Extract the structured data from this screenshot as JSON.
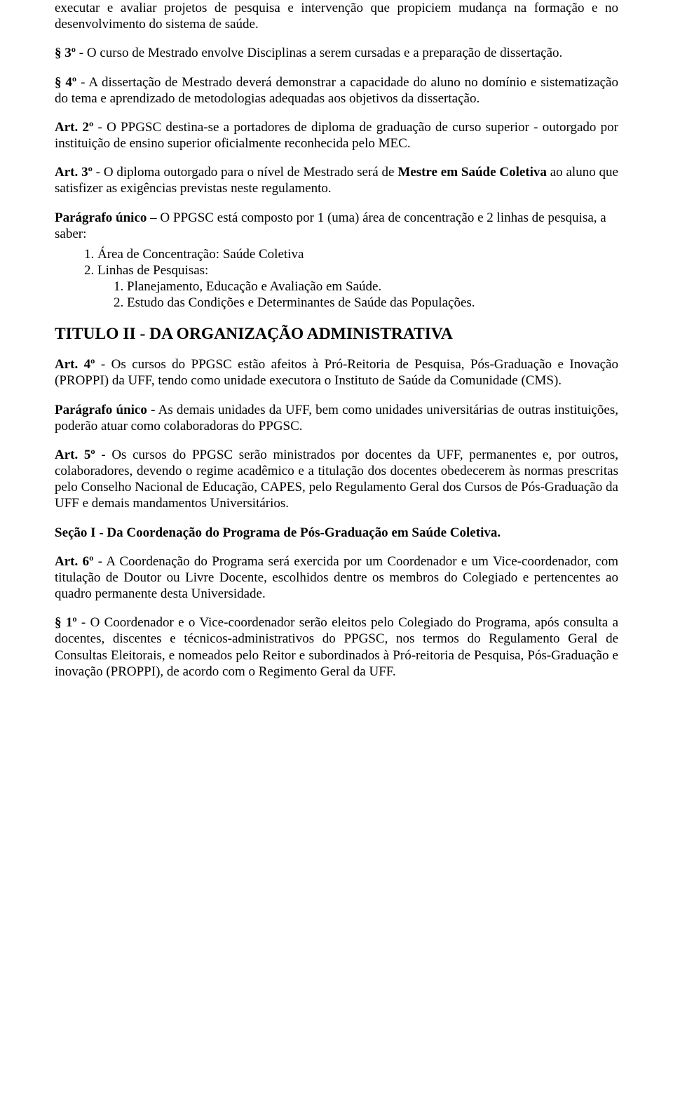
{
  "para1": "executar e avaliar projetos de pesquisa e intervenção que propiciem mudança na formação e no desenvolvimento do sistema de saúde.",
  "para2_prefix": "§ 3º",
  "para2_rest": " - O curso de Mestrado envolve Disciplinas a serem cursadas e a preparação de dissertação.",
  "para3_prefix": "§ 4º",
  "para3_rest": " - A dissertação de Mestrado deverá demonstrar a capacidade do aluno no domínio e sistematização do tema e aprendizado de metodologias adequadas aos objetivos da dissertação.",
  "para4_prefix": "Art. 2º",
  "para4_rest": " - O PPGSC destina-se a portadores de diploma de graduação de curso superior - outorgado por instituição de ensino superior oficialmente reconhecida pelo MEC.",
  "para5_prefix": "Art. 3º",
  "para5_mid1": " - O diploma outorgado para o nível de Mestrado será de ",
  "para5_bold": "Mestre em Saúde Coletiva",
  "para5_mid2": " ao aluno que satisfizer as exigências previstas neste regulamento.",
  "para6_prefix": "Parágrafo único",
  "para6_rest": " – O PPGSC está composto por 1 (uma) área de concentração e 2 linhas de pesquisa, a saber:",
  "list1_item1": "1.  Área de Concentração: Saúde Coletiva",
  "list1_item2": "2.  Linhas de Pesquisas:",
  "list2_item1": "1.  Planejamento, Educação e Avaliação em Saúde.",
  "list2_item2": "2.  Estudo das Condições e Determinantes de Saúde das Populações.",
  "title2": "TITULO II - DA ORGANIZAÇÃO ADMINISTRATIVA",
  "para7_prefix": "Art. 4º",
  "para7_rest": " - Os cursos do PPGSC estão afeitos à Pró-Reitoria de Pesquisa, Pós-Graduação e Inovação (PROPPI) da UFF, tendo como unidade executora o Instituto de Saúde da Comunidade (CMS).",
  "para8_prefix": "Parágrafo único",
  "para8_rest": " - As demais unidades da UFF, bem como unidades universitárias de outras instituições, poderão atuar como colaboradoras do PPGSC.",
  "para9_prefix": "Art. 5º",
  "para9_rest": " - Os cursos do PPGSC serão ministrados por docentes da UFF, permanentes e, por outros, colaboradores, devendo o regime acadêmico e a titulação dos docentes obedecerem às normas prescritas pelo Conselho Nacional de Educação, CAPES, pelo Regulamento Geral dos Cursos de Pós-Graduação da UFF e demais mandamentos Universitários.",
  "section1": "Seção I - Da Coordenação do Programa de Pós-Graduação em Saúde Coletiva.",
  "para10_prefix": "Art. 6º",
  "para10_rest": " - A Coordenação do Programa será exercida por um Coordenador e um Vice-coordenador, com titulação de Doutor ou Livre Docente, escolhidos dentre os membros do Colegiado e pertencentes ao quadro permanente desta Universidade.",
  "para11_prefix": "§ 1º",
  "para11_rest": " - O Coordenador e o Vice-coordenador serão eleitos pelo Colegiado do Programa, após consulta a docentes, discentes e técnicos-administrativos do PPGSC, nos termos do Regulamento Geral de Consultas Eleitorais, e nomeados pelo Reitor e subordinados à Pró-reitoria de Pesquisa, Pós-Graduação e inovação (PROPPI), de acordo com o Regimento Geral da UFF."
}
